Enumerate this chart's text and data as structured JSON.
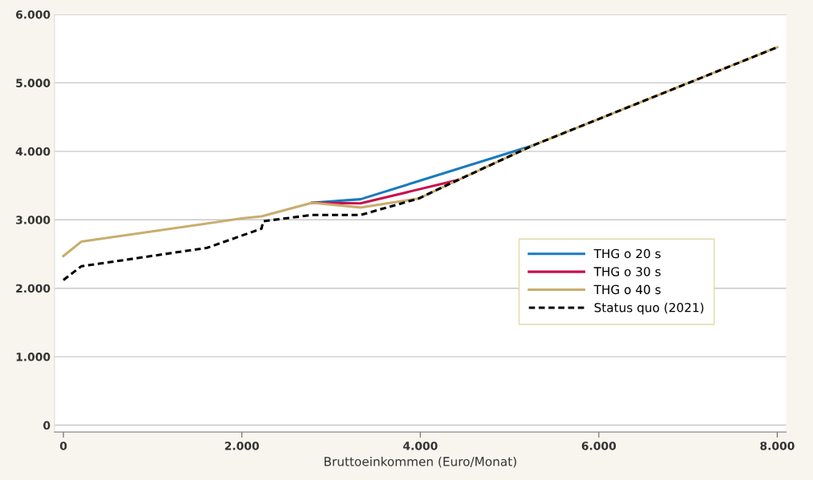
{
  "chart_data": {
    "type": "line",
    "xlabel": "Bruttoeinkommen (Euro/Monat)",
    "xlim": [
      -100,
      8100
    ],
    "xticks": [
      {
        "value": 0,
        "label": "0"
      },
      {
        "value": 2000,
        "label": "2.000"
      },
      {
        "value": 4000,
        "label": "4.000"
      },
      {
        "value": 6000,
        "label": "6.000"
      },
      {
        "value": 8000,
        "label": "8.000"
      }
    ],
    "ylim": [
      -100,
      6000
    ],
    "yticks": [
      {
        "value": 0,
        "label": "0"
      },
      {
        "value": 1000,
        "label": "1.000"
      },
      {
        "value": 2000,
        "label": "2.000"
      },
      {
        "value": 3000,
        "label": "3.000"
      },
      {
        "value": 4000,
        "label": "4.000"
      },
      {
        "value": 5000,
        "label": "5.000"
      },
      {
        "value": 6000,
        "label": "6.000"
      }
    ],
    "grid": "y",
    "legend": "right",
    "marker": "none",
    "series": [
      {
        "name": "THG o 20 s",
        "color": "#1a7abf",
        "x": [
          2790,
          3330,
          5270
        ],
        "values": [
          3250,
          3300,
          4090
        ]
      },
      {
        "name": "THG o 30 s",
        "color": "#c8104e",
        "x": [
          2790,
          3330,
          4420
        ],
        "values": [
          3250,
          3240,
          3580
        ]
      },
      {
        "name": "THG o 40 s",
        "color": "#c9ad6e",
        "x": [
          0,
          200,
          2000,
          2220,
          2790,
          3330,
          3980,
          4370,
          5270,
          8000
        ],
        "values": [
          2470,
          2680,
          3020,
          3050,
          3250,
          3180,
          3310,
          3550,
          4090,
          5520
        ]
      },
      {
        "name": "Status quo (2021)",
        "color": "#000000",
        "line_style": "dotted",
        "x": [
          0,
          200,
          1610,
          2220,
          2240,
          2790,
          3330,
          3980,
          4370,
          5270,
          8000
        ],
        "values": [
          2120,
          2320,
          2590,
          2870,
          2980,
          3070,
          3070,
          3310,
          3550,
          4090,
          5520
        ]
      }
    ]
  }
}
